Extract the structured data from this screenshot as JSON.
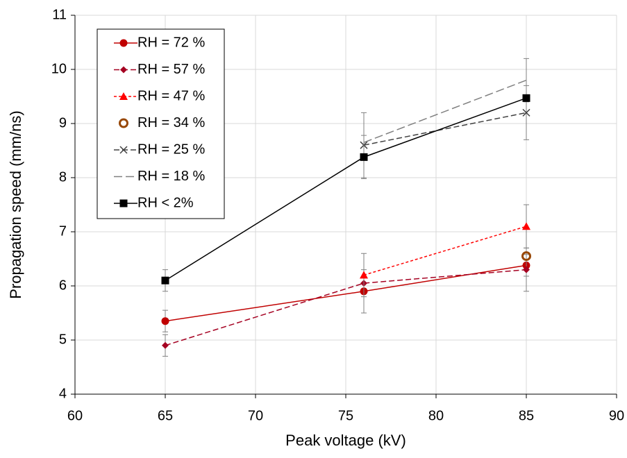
{
  "chart_data": {
    "type": "line",
    "xlabel": "Peak voltage (kV)",
    "ylabel": "Propagation speed (mm/ns)",
    "x": [
      65,
      76,
      85
    ],
    "xlim": [
      60,
      90
    ],
    "xticks": [
      60,
      65,
      70,
      75,
      80,
      85,
      90
    ],
    "ylim": [
      4,
      11
    ],
    "yticks": [
      4,
      5,
      6,
      7,
      8,
      9,
      10,
      11
    ],
    "grid": true,
    "legend_position": "upper left",
    "series": [
      {
        "name": "RH = 72 %",
        "color": "#c00000",
        "line_style": "solid",
        "marker": "circle",
        "values": [
          5.35,
          5.9,
          6.38
        ],
        "errors": [
          0.2,
          0.4,
          0.2
        ]
      },
      {
        "name": "RH = 57 %",
        "color": "#a50021",
        "line_style": "dashed",
        "marker": "diamond",
        "values": [
          4.9,
          6.05,
          6.3
        ],
        "errors": [
          0.2,
          null,
          0.4
        ]
      },
      {
        "name": "RH = 47 %",
        "color": "#ff0000",
        "line_style": "dotted",
        "marker": "triangle",
        "values": [
          null,
          6.2,
          7.1
        ],
        "errors": [
          null,
          0.4,
          0.4
        ]
      },
      {
        "name": "RH = 34 %",
        "color": "#974706",
        "line_style": "none",
        "marker": "open-circle",
        "values": [
          null,
          null,
          6.55
        ],
        "errors": [
          null,
          null,
          null
        ]
      },
      {
        "name": "RH = 25 %",
        "color": "#404040",
        "line_style": "dashed",
        "marker": "x",
        "values": [
          null,
          8.6,
          9.2
        ],
        "errors": [
          null,
          0.6,
          0.5
        ]
      },
      {
        "name": "RH = 18 %",
        "color": "#808080",
        "line_style": "longdash",
        "marker": "none",
        "values": [
          null,
          8.65,
          9.8
        ],
        "errors": [
          null,
          null,
          0.4
        ]
      },
      {
        "name": "RH < 2%",
        "color": "#000000",
        "line_style": "solid",
        "marker": "square",
        "values": [
          6.1,
          8.38,
          9.47
        ],
        "errors": [
          0.2,
          0.4,
          null
        ]
      }
    ]
  }
}
